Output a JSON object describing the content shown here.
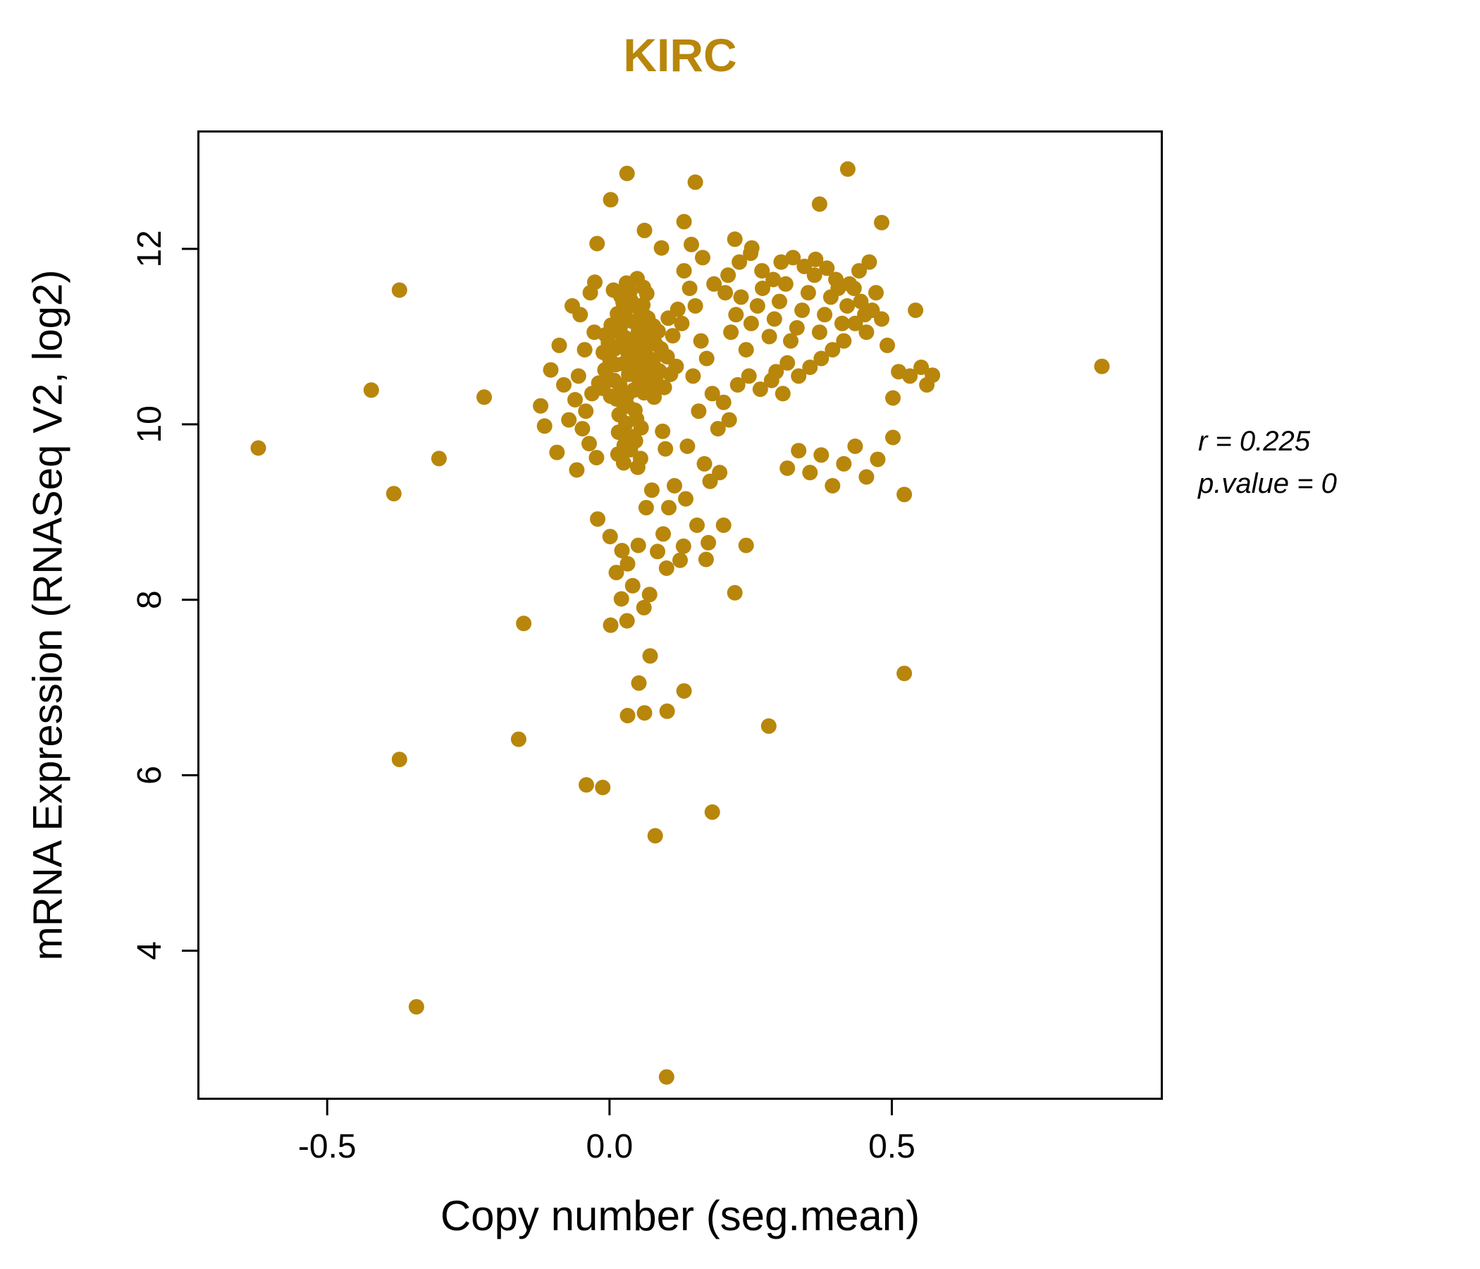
{
  "chart_data": {
    "type": "scatter",
    "title": "KIRC",
    "title_color": "#B8860B",
    "xlabel": "Copy number (seg.mean)",
    "ylabel": "mRNA Expression (RNASeq V2, log2)",
    "xlim": [
      -0.73,
      0.98
    ],
    "ylim": [
      2.3,
      13.35
    ],
    "x_ticks": [
      -0.5,
      0.0,
      0.5
    ],
    "y_ticks": [
      4,
      6,
      8,
      10,
      12
    ],
    "grid": false,
    "legend": null,
    "point_color": "#B8860B",
    "annotations": [
      "r = 0.225",
      "p.value = 0"
    ],
    "points": [
      [
        0.022,
        10.26
      ],
      [
        0.031,
        10.33
      ],
      [
        0.043,
        10.39
      ],
      [
        0.018,
        10.45
      ],
      [
        0.052,
        10.51
      ],
      [
        0.034,
        10.57
      ],
      [
        0.041,
        10.63
      ],
      [
        0.024,
        10.69
      ],
      [
        0.049,
        10.75
      ],
      [
        0.033,
        10.81
      ],
      [
        0.044,
        10.87
      ],
      [
        0.058,
        10.93
      ],
      [
        0.027,
        10.99
      ],
      [
        0.051,
        11.05
      ],
      [
        0.019,
        11.11
      ],
      [
        0.042,
        11.17
      ],
      [
        0.063,
        11.23
      ],
      [
        0.028,
        11.29
      ],
      [
        0.047,
        11.35
      ],
      [
        0.038,
        11.41
      ],
      [
        0.012,
        10.29
      ],
      [
        0.061,
        10.36
      ],
      [
        0.072,
        10.43
      ],
      [
        0.008,
        10.5
      ],
      [
        0.069,
        10.56
      ],
      [
        0.057,
        10.62
      ],
      [
        0.011,
        10.68
      ],
      [
        0.073,
        10.74
      ],
      [
        0.064,
        10.8
      ],
      [
        0.009,
        10.86
      ],
      [
        0.021,
        10.91
      ],
      [
        0.053,
        10.96
      ],
      [
        0.071,
        11.01
      ],
      [
        0.013,
        11.06
      ],
      [
        0.062,
        11.11
      ],
      [
        0.023,
        11.16
      ],
      [
        0.068,
        11.21
      ],
      [
        0.014,
        11.26
      ],
      [
        0.054,
        11.31
      ],
      [
        0.059,
        11.36
      ],
      [
        0.032,
        10.21
      ],
      [
        0.045,
        10.16
      ],
      [
        0.017,
        10.11
      ],
      [
        0.048,
        10.06
      ],
      [
        0.029,
        10.01
      ],
      [
        0.056,
        9.96
      ],
      [
        0.016,
        9.91
      ],
      [
        0.039,
        9.86
      ],
      [
        0.046,
        9.81
      ],
      [
        0.026,
        9.76
      ],
      [
        0.037,
        9.71
      ],
      [
        0.015,
        9.66
      ],
      [
        0.055,
        9.61
      ],
      [
        0.025,
        9.56
      ],
      [
        0.05,
        9.51
      ],
      [
        0.079,
        10.31
      ],
      [
        0.082,
        10.52
      ],
      [
        0.077,
        10.72
      ],
      [
        0.081,
        10.92
      ],
      [
        0.078,
        11.12
      ],
      [
        0.002,
        10.32
      ],
      [
        -0.003,
        10.53
      ],
      [
        0.001,
        10.73
      ],
      [
        -0.002,
        10.93
      ],
      [
        0.003,
        11.13
      ],
      [
        -0.012,
        10.41
      ],
      [
        -0.008,
        10.62
      ],
      [
        -0.011,
        10.82
      ],
      [
        -0.007,
        11.02
      ],
      [
        -0.019,
        10.47
      ],
      [
        0.02,
        11.46
      ],
      [
        0.036,
        11.51
      ],
      [
        0.06,
        11.56
      ],
      [
        0.03,
        11.61
      ],
      [
        0.049,
        11.66
      ],
      [
        0.007,
        11.53
      ],
      [
        0.066,
        11.49
      ],
      [
        0.024,
        11.39
      ],
      [
        0.088,
        10.61
      ],
      [
        0.091,
        10.86
      ],
      [
        0.086,
        11.06
      ],
      [
        0.097,
        10.42
      ],
      [
        0.102,
        10.77
      ],
      [
        0.108,
        10.57
      ],
      [
        0.112,
        11.01
      ],
      [
        0.118,
        10.66
      ],
      [
        0.104,
        11.21
      ],
      [
        0.121,
        11.31
      ],
      [
        0.094,
        9.92
      ],
      [
        0.099,
        9.72
      ],
      [
        -0.031,
        10.35
      ],
      [
        -0.042,
        10.15
      ],
      [
        -0.055,
        10.55
      ],
      [
        -0.048,
        9.95
      ],
      [
        -0.036,
        9.78
      ],
      [
        -0.027,
        11.05
      ],
      [
        -0.044,
        10.85
      ],
      [
        -0.052,
        11.25
      ],
      [
        -0.023,
        9.62
      ],
      [
        -0.061,
        10.28
      ],
      [
        -0.058,
        9.48
      ],
      [
        -0.072,
        10.05
      ],
      [
        -0.081,
        10.45
      ],
      [
        -0.093,
        9.68
      ],
      [
        -0.104,
        10.62
      ],
      [
        -0.115,
        9.98
      ],
      [
        -0.089,
        10.9
      ],
      [
        -0.066,
        11.35
      ],
      [
        -0.034,
        11.5
      ],
      [
        -0.026,
        11.62
      ],
      [
        0.215,
        11.05
      ],
      [
        0.224,
        11.25
      ],
      [
        0.233,
        11.45
      ],
      [
        0.242,
        10.85
      ],
      [
        0.251,
        11.15
      ],
      [
        0.262,
        11.35
      ],
      [
        0.271,
        11.55
      ],
      [
        0.283,
        11.0
      ],
      [
        0.292,
        11.2
      ],
      [
        0.301,
        11.4
      ],
      [
        0.312,
        11.6
      ],
      [
        0.321,
        10.95
      ],
      [
        0.332,
        11.1
      ],
      [
        0.341,
        11.3
      ],
      [
        0.352,
        11.5
      ],
      [
        0.363,
        11.7
      ],
      [
        0.372,
        11.05
      ],
      [
        0.381,
        11.25
      ],
      [
        0.392,
        11.45
      ],
      [
        0.401,
        11.65
      ],
      [
        0.412,
        11.15
      ],
      [
        0.421,
        11.35
      ],
      [
        0.433,
        11.55
      ],
      [
        0.442,
        11.75
      ],
      [
        0.452,
        11.25
      ],
      [
        0.304,
        11.85
      ],
      [
        0.325,
        11.9
      ],
      [
        0.345,
        11.8
      ],
      [
        0.365,
        11.88
      ],
      [
        0.385,
        11.78
      ],
      [
        0.405,
        11.55
      ],
      [
        0.425,
        11.6
      ],
      [
        0.445,
        11.4
      ],
      [
        0.295,
        10.6
      ],
      [
        0.315,
        10.7
      ],
      [
        0.335,
        10.55
      ],
      [
        0.355,
        10.65
      ],
      [
        0.375,
        10.75
      ],
      [
        0.395,
        10.85
      ],
      [
        0.415,
        10.95
      ],
      [
        0.227,
        10.45
      ],
      [
        0.247,
        10.55
      ],
      [
        0.267,
        10.4
      ],
      [
        0.287,
        10.5
      ],
      [
        0.307,
        10.35
      ],
      [
        0.21,
        11.7
      ],
      [
        0.23,
        11.85
      ],
      [
        0.25,
        11.95
      ],
      [
        0.27,
        11.75
      ],
      [
        0.29,
        11.65
      ],
      [
        0.435,
        11.15
      ],
      [
        0.455,
        11.05
      ],
      [
        0.465,
        11.3
      ],
      [
        0.472,
        11.5
      ],
      [
        0.46,
        11.85
      ],
      [
        0.132,
        11.75
      ],
      [
        0.142,
        11.55
      ],
      [
        0.152,
        11.35
      ],
      [
        0.128,
        11.15
      ],
      [
        0.162,
        10.95
      ],
      [
        0.172,
        10.75
      ],
      [
        0.148,
        10.55
      ],
      [
        0.182,
        10.35
      ],
      [
        0.158,
        10.15
      ],
      [
        0.192,
        9.95
      ],
      [
        0.138,
        9.75
      ],
      [
        0.168,
        9.55
      ],
      [
        0.178,
        9.35
      ],
      [
        0.202,
        10.25
      ],
      [
        0.212,
        10.05
      ],
      [
        0.145,
        12.05
      ],
      [
        0.165,
        11.9
      ],
      [
        0.185,
        11.6
      ],
      [
        0.205,
        11.5
      ],
      [
        0.135,
        9.15
      ],
      [
        0.155,
        8.85
      ],
      [
        0.175,
        8.65
      ],
      [
        0.195,
        9.45
      ],
      [
        0.125,
        8.45
      ],
      [
        0.115,
        9.3
      ],
      [
        0.105,
        9.05
      ],
      [
        0.095,
        8.75
      ],
      [
        0.085,
        8.55
      ],
      [
        0.075,
        9.25
      ],
      [
        0.065,
        9.05
      ],
      [
        0.482,
        11.2
      ],
      [
        0.492,
        10.9
      ],
      [
        0.502,
        9.85
      ],
      [
        0.512,
        10.6
      ],
      [
        0.522,
        9.2
      ],
      [
        0.532,
        10.55
      ],
      [
        0.542,
        11.3
      ],
      [
        0.552,
        10.65
      ],
      [
        0.562,
        10.45
      ],
      [
        0.475,
        9.6
      ],
      [
        0.455,
        9.4
      ],
      [
        0.435,
        9.75
      ],
      [
        0.415,
        9.55
      ],
      [
        0.395,
        9.3
      ],
      [
        0.375,
        9.65
      ],
      [
        0.355,
        9.45
      ],
      [
        0.335,
        9.7
      ],
      [
        0.315,
        9.5
      ],
      [
        -0.021,
        8.92
      ],
      [
        0.001,
        8.72
      ],
      [
        0.022,
        8.56
      ],
      [
        0.032,
        8.41
      ],
      [
        0.051,
        8.62
      ],
      [
        0.012,
        8.31
      ],
      [
        0.041,
        8.16
      ],
      [
        0.021,
        8.01
      ],
      [
        0.061,
        7.91
      ],
      [
        0.031,
        7.76
      ],
      [
        0.002,
        7.71
      ],
      [
        0.071,
        8.06
      ],
      [
        0.101,
        8.36
      ],
      [
        0.131,
        8.61
      ],
      [
        0.171,
        8.46
      ],
      [
        0.182,
        5.58
      ],
      [
        0.081,
        5.31
      ],
      [
        0.062,
        6.71
      ],
      [
        0.102,
        6.73
      ],
      [
        0.132,
        6.96
      ],
      [
        0.072,
        7.36
      ],
      [
        -0.041,
        5.89
      ],
      [
        -0.012,
        5.86
      ],
      [
        -0.161,
        6.41
      ],
      [
        -0.372,
        6.18
      ],
      [
        -0.342,
        3.36
      ],
      [
        0.101,
        2.56
      ],
      [
        0.282,
        6.56
      ],
      [
        0.522,
        7.16
      ],
      [
        -0.152,
        7.73
      ],
      [
        0.052,
        7.05
      ],
      [
        0.032,
        6.68
      ],
      [
        0.222,
        8.08
      ],
      [
        0.242,
        8.62
      ],
      [
        0.202,
        8.85
      ],
      [
        0.031,
        12.86
      ],
      [
        0.002,
        12.56
      ],
      [
        0.152,
        12.76
      ],
      [
        0.422,
        12.91
      ],
      [
        0.372,
        12.51
      ],
      [
        0.132,
        12.31
      ],
      [
        0.222,
        12.11
      ],
      [
        0.252,
        12.01
      ],
      [
        0.062,
        12.21
      ],
      [
        0.092,
        12.01
      ],
      [
        -0.022,
        12.06
      ],
      [
        -0.622,
        9.73
      ],
      [
        -0.422,
        10.39
      ],
      [
        -0.372,
        11.53
      ],
      [
        -0.382,
        9.21
      ],
      [
        -0.302,
        9.61
      ],
      [
        -0.222,
        10.31
      ],
      [
        -0.122,
        10.21
      ],
      [
        0.872,
        10.66
      ],
      [
        0.572,
        10.56
      ],
      [
        0.502,
        10.3
      ],
      [
        0.482,
        12.3
      ]
    ]
  }
}
